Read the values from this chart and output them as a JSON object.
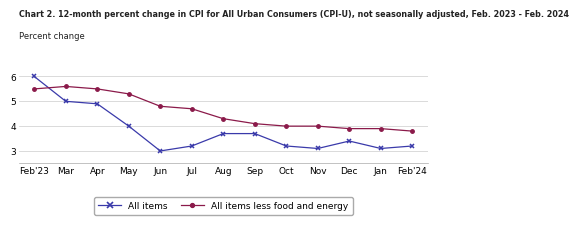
{
  "title_line1": "Chart 2. 12-month percent change in CPI for All Urban Consumers (CPI-U), not seasonally adjusted, Feb. 2023 - Feb. 2024",
  "title_line2": "Percent change",
  "x_labels": [
    "Feb'23",
    "Mar",
    "Apr",
    "May",
    "Jun",
    "Jul",
    "Aug",
    "Sep",
    "Oct",
    "Nov",
    "Dec",
    "Jan",
    "Feb'24"
  ],
  "all_items": [
    6.0,
    5.0,
    4.9,
    4.0,
    3.0,
    3.2,
    3.7,
    3.7,
    3.2,
    3.1,
    3.4,
    3.1,
    3.2
  ],
  "core_items": [
    5.5,
    5.6,
    5.5,
    5.3,
    4.8,
    4.7,
    4.3,
    4.1,
    4.0,
    4.0,
    3.9,
    3.9,
    3.8
  ],
  "all_items_color": "#3a3aaa",
  "core_items_color": "#8b1a4a",
  "ylim": [
    2.5,
    6.4
  ],
  "yticks": [
    3,
    4,
    5,
    6
  ],
  "bg_color": "#ffffff",
  "plot_bg_color": "#ffffff",
  "legend_all_items": "All items",
  "legend_core_items": "All items less food and energy",
  "title_fontsize": 5.8,
  "label_fontsize": 6.0,
  "tick_fontsize": 6.5,
  "legend_fontsize": 6.5
}
